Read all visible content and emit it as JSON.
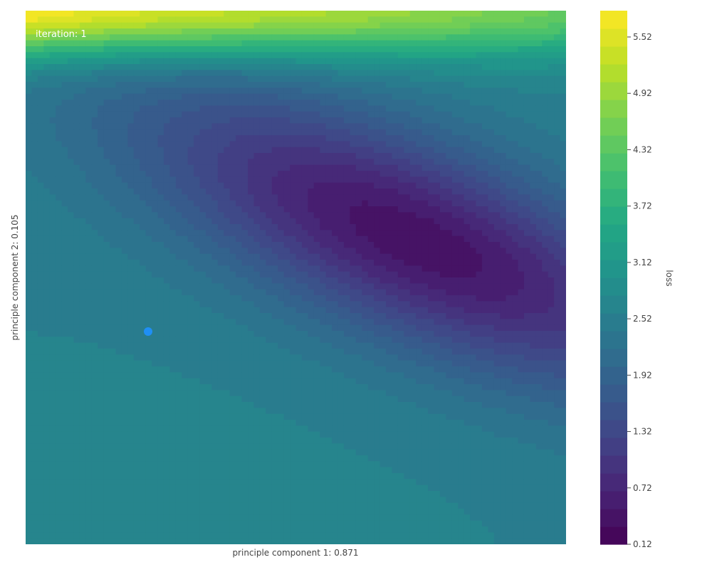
{
  "chart_data": {
    "type": "heatmap",
    "subtype": "contour",
    "annotation": "iteration: 1",
    "xlabel": "principle component 1: 0.871",
    "ylabel": "principle component 2: 0.105",
    "colorbar": {
      "label": "loss",
      "range": [
        0.12,
        5.8
      ],
      "tick_values": [
        0.12,
        0.72,
        1.32,
        1.92,
        2.52,
        3.12,
        3.72,
        4.32,
        4.92,
        5.52
      ],
      "tick_labels": [
        "0.12",
        "0.72",
        "1.32",
        "1.92",
        "2.52",
        "3.12",
        "3.72",
        "4.32",
        "4.92",
        "5.52"
      ],
      "bands": 30,
      "colormap": "viridis"
    },
    "marker": {
      "color": "#1f8ff5"
    },
    "grid": false,
    "show_axis_ticks": false
  }
}
